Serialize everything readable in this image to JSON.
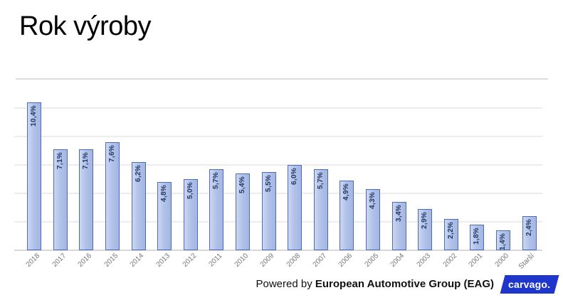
{
  "title": "Rok výroby",
  "chart_data": {
    "type": "bar",
    "title": "Rok výroby",
    "categories": [
      "2018",
      "2017",
      "2016",
      "2015",
      "2014",
      "2013",
      "2012",
      "2011",
      "2010",
      "2009",
      "2008",
      "2007",
      "2006",
      "2005",
      "2004",
      "2003",
      "2002",
      "2001",
      "2000",
      "Starší"
    ],
    "values": [
      10.4,
      7.1,
      7.1,
      7.6,
      6.2,
      4.8,
      5.0,
      5.7,
      5.4,
      5.5,
      6.0,
      5.7,
      4.9,
      4.3,
      3.4,
      2.9,
      2.2,
      1.8,
      1.4,
      2.4
    ],
    "data_labels": [
      "10,4%",
      "7,1%",
      "7,1%",
      "7,6%",
      "6,2%",
      "4,8%",
      "5,0%",
      "5,7%",
      "5,4%",
      "5,5%",
      "6,0%",
      "5,7%",
      "4,9%",
      "4,3%",
      "3,4%",
      "2,9%",
      "2,2%",
      "1,8%",
      "1,4%",
      "2,4%"
    ],
    "unit": "%",
    "xlabel": "",
    "ylabel": "",
    "ylim": [
      0,
      11
    ],
    "gridline_values": [
      2,
      4,
      6,
      8,
      10
    ],
    "grid": true,
    "legend": false,
    "data_label_rotation": "vertical",
    "x_tick_rotation": 45
  },
  "colors": {
    "bar_border": "#4e6cb0",
    "bar_fill_light": "#cdd7f1",
    "bar_fill_mid": "#b2c2e9",
    "bar_fill_dark": "#a3b6e2",
    "value_label": "#213a66",
    "axis_label": "#767676",
    "gridline": "#ececec",
    "axis_line": "#d8d8d8",
    "divider": "#dcdcdc",
    "carvago_blue": "#1e36cc",
    "footer_text": "#111111"
  },
  "footer": {
    "powered_by_prefix": "Powered by ",
    "powered_by_bold": "European Automotive Group (EAG)",
    "logo_text": "carvago."
  }
}
